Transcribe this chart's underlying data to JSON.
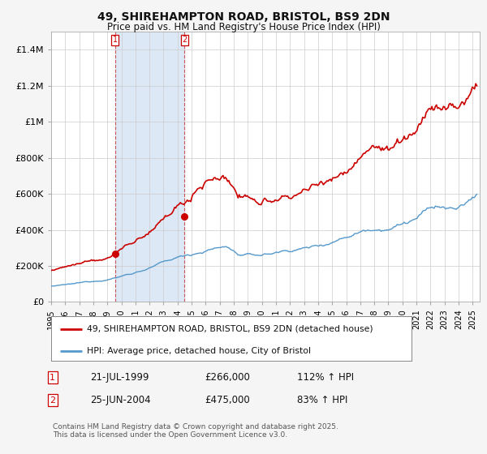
{
  "title": "49, SHIREHAMPTON ROAD, BRISTOL, BS9 2DN",
  "subtitle": "Price paid vs. HM Land Registry's House Price Index (HPI)",
  "property_label": "49, SHIREHAMPTON ROAD, BRISTOL, BS9 2DN (detached house)",
  "hpi_label": "HPI: Average price, detached house, City of Bristol",
  "property_color": "#cc0000",
  "hpi_color": "#5599cc",
  "span_color": "#dce8f5",
  "background_color": "#f5f5f5",
  "plot_bg_color": "#ffffff",
  "ylim": [
    0,
    1500000
  ],
  "yticks": [
    0,
    200000,
    400000,
    600000,
    800000,
    1000000,
    1200000,
    1400000
  ],
  "ytick_labels": [
    "£0",
    "£200K",
    "£400K",
    "£600K",
    "£800K",
    "£1M",
    "£1.2M",
    "£1.4M"
  ],
  "sale1_date": "21-JUL-1999",
  "sale1_price": 266000,
  "sale1_hpi_pct": "112% ↑ HPI",
  "sale1_x": 1999.54,
  "sale2_date": "25-JUN-2004",
  "sale2_price": 475000,
  "sale2_hpi_pct": "83% ↑ HPI",
  "sale2_x": 2004.48,
  "footnote": "Contains HM Land Registry data © Crown copyright and database right 2025.\nThis data is licensed under the Open Government Licence v3.0.",
  "xmin": 1995.0,
  "xmax": 2025.5
}
